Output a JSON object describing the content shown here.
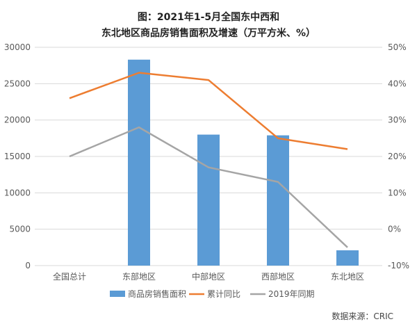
{
  "title_line1": "图：2021年1-5月全国东中西和",
  "title_line2": "东北地区商品房销售面积及增速（万平方米、%）",
  "source": "数据来源：CRIC",
  "chart_data": {
    "type": "bar",
    "categories": [
      "全国总计",
      "东部地区",
      "中部地区",
      "西部地区",
      "东北地区"
    ],
    "bar_series": {
      "name": "商品房销售面积",
      "values": [
        0,
        28300,
        18000,
        17900,
        2100
      ],
      "color": "#5b9bd5"
    },
    "line_series": [
      {
        "name": "累计同比",
        "values": [
          36,
          43,
          41,
          25,
          22
        ],
        "color": "#ed7d31"
      },
      {
        "name": "2019年同期",
        "values": [
          20,
          28,
          17,
          13,
          -5
        ],
        "color": "#a5a5a5"
      }
    ],
    "y_left": {
      "min": 0,
      "max": 30000,
      "ticks": [
        "30000",
        "25000",
        "20000",
        "15000",
        "10000",
        "5000",
        "0"
      ]
    },
    "y_right": {
      "min": -10,
      "max": 50,
      "ticks": [
        "50%",
        "40%",
        "30%",
        "20%",
        "10%",
        "0%",
        "-10%"
      ]
    },
    "grid": true,
    "legend_position": "bottom"
  }
}
